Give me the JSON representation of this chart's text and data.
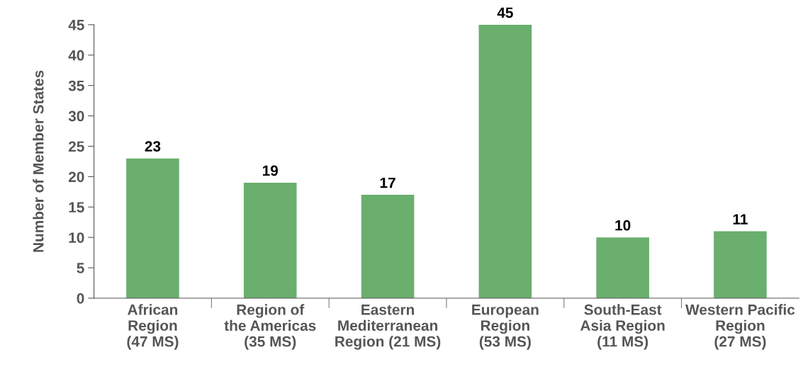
{
  "chart_data": {
    "type": "bar",
    "ylabel": "Number of Member States",
    "categories": [
      "African\nRegion\n(47 MS)",
      "Region of\nthe Americas\n(35 MS)",
      "Eastern\nMediterranean\nRegion (21 MS)",
      "European\nRegion\n(53 MS)",
      "South-East\nAsia Region\n(11 MS)",
      "Western Pacific\nRegion\n(27 MS)"
    ],
    "values": [
      23,
      19,
      17,
      45,
      10,
      11
    ],
    "color": "#6aaf6e",
    "ylim": [
      0,
      45
    ],
    "yticks": [
      0,
      5,
      10,
      15,
      20,
      25,
      30,
      35,
      40,
      45
    ],
    "data_labels": true,
    "grid": false,
    "legend": false
  }
}
